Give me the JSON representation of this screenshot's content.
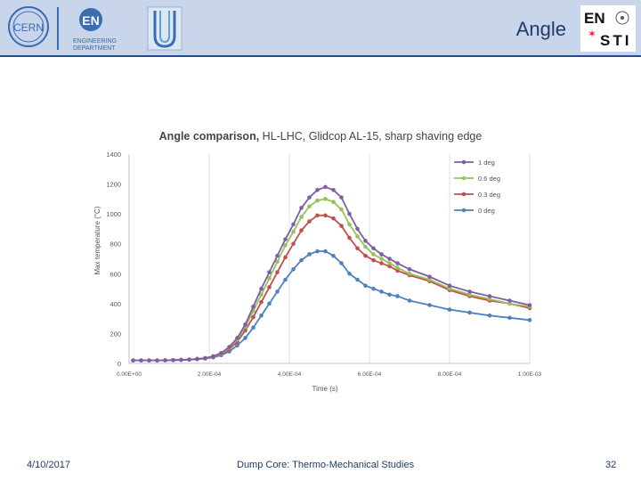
{
  "header": {
    "title": "Angle",
    "logos": {
      "cern": "CERN",
      "en_letters": "EN",
      "en_department_line1": "ENGINEERING",
      "en_department_line2": "DEPARTMENT",
      "ensti_line1": "EN",
      "ensti_line2": "STI"
    }
  },
  "footer": {
    "date": "4/10/2017",
    "title": "Dump Core: Thermo-Mechanical Studies",
    "page": "32"
  },
  "chart_data": {
    "type": "line",
    "title_bold": "Angle comparison,",
    "title_rest": " HL-LHC, Glidcop AL-15, sharp shaving edge",
    "xlabel": "Time (s)",
    "ylabel": "Max temperature (°C)",
    "xlim": [
      0,
      0.001
    ],
    "ylim": [
      0,
      1400
    ],
    "grid": "vertical",
    "legend_position": "top-right",
    "x_tick_labels": [
      "0.00E+00",
      "2.00E-04",
      "4.00E-04",
      "6.00E-04",
      "8.00E-04",
      "1.00E-03"
    ],
    "x_ticks": [
      0,
      0.0002,
      0.0004,
      0.0006,
      0.0008,
      0.001
    ],
    "y_ticks": [
      0,
      200,
      400,
      600,
      800,
      1000,
      1200,
      1400
    ],
    "x": [
      1e-05,
      3e-05,
      5e-05,
      7e-05,
      9e-05,
      0.00011,
      0.00013,
      0.00015,
      0.00017,
      0.00019,
      0.00021,
      0.00023,
      0.00025,
      0.00027,
      0.00029,
      0.00031,
      0.00033,
      0.00035,
      0.00037,
      0.00039,
      0.00041,
      0.00043,
      0.00045,
      0.00047,
      0.00049,
      0.00051,
      0.00053,
      0.00055,
      0.00057,
      0.00059,
      0.00061,
      0.00063,
      0.00065,
      0.00067,
      0.0007,
      0.00075,
      0.0008,
      0.00085,
      0.0009,
      0.00095,
      0.001
    ],
    "series": [
      {
        "name": "1 deg",
        "color": "#7e5ea3",
        "values": [
          20,
          20,
          20,
          20,
          21,
          22,
          24,
          26,
          30,
          36,
          48,
          70,
          110,
          170,
          260,
          380,
          500,
          610,
          720,
          830,
          930,
          1040,
          1110,
          1160,
          1180,
          1160,
          1110,
          1000,
          900,
          820,
          770,
          730,
          700,
          670,
          630,
          580,
          520,
          480,
          450,
          420,
          390
        ]
      },
      {
        "name": "0.6 deg",
        "color": "#99c15a",
        "values": [
          20,
          20,
          20,
          20,
          21,
          22,
          24,
          26,
          30,
          35,
          46,
          66,
          105,
          160,
          245,
          350,
          460,
          570,
          680,
          790,
          880,
          980,
          1050,
          1090,
          1100,
          1080,
          1030,
          930,
          850,
          780,
          730,
          700,
          670,
          640,
          600,
          560,
          500,
          460,
          430,
          400,
          380
        ]
      },
      {
        "name": "0.3 deg",
        "color": "#c0504d",
        "values": [
          20,
          20,
          20,
          20,
          21,
          22,
          24,
          26,
          30,
          34,
          44,
          62,
          95,
          145,
          220,
          310,
          410,
          510,
          610,
          710,
          800,
          890,
          950,
          990,
          990,
          970,
          920,
          840,
          770,
          720,
          690,
          670,
          650,
          620,
          590,
          550,
          490,
          450,
          420,
          400,
          370
        ]
      },
      {
        "name": "0 deg",
        "color": "#4f81bd",
        "values": [
          20,
          20,
          20,
          20,
          21,
          22,
          23,
          25,
          28,
          32,
          40,
          55,
          80,
          120,
          170,
          240,
          320,
          400,
          480,
          560,
          630,
          690,
          730,
          750,
          750,
          720,
          670,
          600,
          560,
          520,
          500,
          480,
          460,
          450,
          420,
          390,
          360,
          340,
          320,
          305,
          290
        ]
      }
    ]
  }
}
